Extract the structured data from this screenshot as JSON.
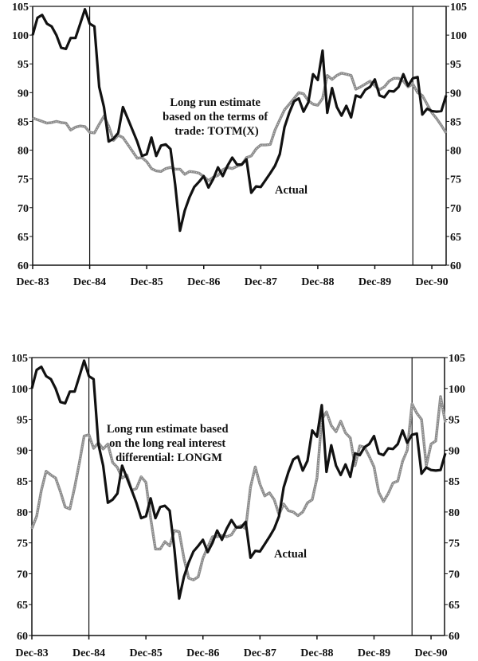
{
  "colors": {
    "actual": "#111111",
    "estimate": "#8c8c8c",
    "axis": "#111111"
  },
  "chart_data": [
    {
      "type": "line",
      "title": "",
      "xlabel": "",
      "ylabel": "",
      "ylim": [
        60,
        105
      ],
      "yticks": [
        "60",
        "65",
        "70",
        "75",
        "80",
        "85",
        "90",
        "95",
        "100",
        "105"
      ],
      "xticks": [
        "Dec-83",
        "Dec-84",
        "Dec-85",
        "Dec-86",
        "Dec-87",
        "Dec-88",
        "Dec-89",
        "Dec-90"
      ],
      "axes": "left and right",
      "grid": false,
      "vertical_lines": [
        "Dec-84",
        "Aug-90"
      ],
      "annotations": {
        "estimate_label": [
          "Long run estimate",
          "based on the terms of",
          "trade: TOTM(X)"
        ],
        "actual_label": "Actual"
      },
      "x": [
        "Dec-83",
        "Jan-84",
        "Feb-84",
        "Mar-84",
        "Apr-84",
        "May-84",
        "Jun-84",
        "Jul-84",
        "Aug-84",
        "Sep-84",
        "Oct-84",
        "Nov-84",
        "Dec-84",
        "Jan-85",
        "Feb-85",
        "Mar-85",
        "Apr-85",
        "May-85",
        "Jun-85",
        "Jul-85",
        "Aug-85",
        "Sep-85",
        "Oct-85",
        "Nov-85",
        "Dec-85",
        "Jan-86",
        "Feb-86",
        "Mar-86",
        "Apr-86",
        "May-86",
        "Jun-86",
        "Jul-86",
        "Aug-86",
        "Sep-86",
        "Oct-86",
        "Nov-86",
        "Dec-86",
        "Jan-87",
        "Feb-87",
        "Mar-87",
        "Apr-87",
        "May-87",
        "Jun-87",
        "Jul-87",
        "Aug-87",
        "Sep-87",
        "Oct-87",
        "Nov-87",
        "Dec-87",
        "Jan-88",
        "Feb-88",
        "Mar-88",
        "Apr-88",
        "May-88",
        "Jun-88",
        "Jul-88",
        "Aug-88",
        "Sep-88",
        "Oct-88",
        "Nov-88",
        "Dec-88",
        "Jan-89",
        "Feb-89",
        "Mar-89",
        "Apr-89",
        "May-89",
        "Jun-89",
        "Jul-89",
        "Aug-89",
        "Sep-89",
        "Oct-89",
        "Nov-89",
        "Dec-89",
        "Jan-90",
        "Feb-90",
        "Mar-90",
        "Apr-90",
        "May-90",
        "Jun-90",
        "Jul-90",
        "Aug-90",
        "Sep-90",
        "Oct-90",
        "Nov-90",
        "Dec-90",
        "Jan-91",
        "Feb-91",
        "Mar-91"
      ],
      "series": [
        {
          "name": "Actual",
          "role": "actual",
          "values": [
            100,
            103,
            103.5,
            102,
            101.5,
            100,
            97.8,
            97.6,
            99.5,
            99.5,
            102,
            104.5,
            102,
            101.5,
            91,
            87.5,
            81.5,
            82,
            83,
            87.5,
            85.5,
            83.5,
            81.5,
            79,
            79.3,
            82.2,
            79,
            80.8,
            81,
            80.2,
            74,
            66,
            69.5,
            71.8,
            73.6,
            74.5,
            75.5,
            73.5,
            75,
            77,
            75.5,
            77.3,
            78.7,
            77.5,
            77.5,
            78.4,
            72.6,
            73.7,
            73.6,
            74.8,
            76,
            77.3,
            79.3,
            84,
            86.5,
            88.5,
            89,
            86.7,
            88.3,
            93.2,
            92.2,
            97.3,
            86.5,
            90.8,
            87.5,
            86,
            87.7,
            85.7,
            89.5,
            89.2,
            90.5,
            91,
            92.3,
            89.5,
            89.2,
            90.3,
            90.2,
            91,
            93.2,
            91.2,
            92.5,
            92.7,
            86.2,
            87.2,
            86.8,
            86.7,
            86.8,
            89.5
          ]
        },
        {
          "name": "Long run estimate based on the terms of trade: TOTM(X)",
          "role": "estimate",
          "values": [
            85.6,
            85.3,
            85,
            84.7,
            84.8,
            85,
            84.8,
            84.7,
            83.5,
            84,
            84.2,
            84.1,
            83.1,
            83,
            84.5,
            85.9,
            84.2,
            81.7,
            82.6,
            82.2,
            81,
            79.8,
            78.6,
            78.7,
            78,
            76.8,
            76.4,
            76.3,
            76.8,
            77,
            76.7,
            76.7,
            75.8,
            76.3,
            76.2,
            76,
            75.4,
            74.7,
            75.3,
            75.6,
            76.6,
            77,
            76.8,
            77.2,
            77.5,
            78.7,
            79,
            80.2,
            80.9,
            80.9,
            81,
            83.5,
            85.3,
            87,
            88,
            89,
            90,
            89.8,
            88.6,
            88,
            87.8,
            89,
            93,
            92.3,
            93,
            93.4,
            93.2,
            93,
            90.6,
            91,
            91.5,
            92,
            91.2,
            90.5,
            91,
            92,
            92.5,
            92.5,
            92,
            91,
            91.5,
            90,
            89.5,
            88,
            86.5,
            85.5,
            84.3,
            83
          ]
        }
      ]
    },
    {
      "type": "line",
      "title": "",
      "xlabel": "",
      "ylabel": "",
      "ylim": [
        60,
        105
      ],
      "yticks": [
        "60",
        "65",
        "70",
        "75",
        "80",
        "85",
        "90",
        "95",
        "100",
        "105"
      ],
      "xticks": [
        "Dec-83",
        "Dec-84",
        "Dec-85",
        "Dec-86",
        "Dec-87",
        "Dec-88",
        "Dec-89",
        "Dec-90"
      ],
      "axes": "left and right",
      "grid": false,
      "vertical_lines": [
        "Dec-84",
        "Aug-90"
      ],
      "annotations": {
        "estimate_label": [
          "Long run estimate based",
          "on the long real interest",
          "differential: LONGM"
        ],
        "actual_label": "Actual"
      },
      "x": [
        "Dec-83",
        "Jan-84",
        "Feb-84",
        "Mar-84",
        "Apr-84",
        "May-84",
        "Jun-84",
        "Jul-84",
        "Aug-84",
        "Sep-84",
        "Oct-84",
        "Nov-84",
        "Dec-84",
        "Jan-85",
        "Feb-85",
        "Mar-85",
        "Apr-85",
        "May-85",
        "Jun-85",
        "Jul-85",
        "Aug-85",
        "Sep-85",
        "Oct-85",
        "Nov-85",
        "Dec-85",
        "Jan-86",
        "Feb-86",
        "Mar-86",
        "Apr-86",
        "May-86",
        "Jun-86",
        "Jul-86",
        "Aug-86",
        "Sep-86",
        "Oct-86",
        "Nov-86",
        "Dec-86",
        "Jan-87",
        "Feb-87",
        "Mar-87",
        "Apr-87",
        "May-87",
        "Jun-87",
        "Jul-87",
        "Aug-87",
        "Sep-87",
        "Oct-87",
        "Nov-87",
        "Dec-87",
        "Jan-88",
        "Feb-88",
        "Mar-88",
        "Apr-88",
        "May-88",
        "Jun-88",
        "Jul-88",
        "Aug-88",
        "Sep-88",
        "Oct-88",
        "Nov-88",
        "Dec-88",
        "Jan-89",
        "Feb-89",
        "Mar-89",
        "Apr-89",
        "May-89",
        "Jun-89",
        "Jul-89",
        "Aug-89",
        "Sep-89",
        "Oct-89",
        "Nov-89",
        "Dec-89",
        "Jan-90",
        "Feb-90",
        "Mar-90",
        "Apr-90",
        "May-90",
        "Jun-90",
        "Jul-90",
        "Aug-90",
        "Sep-90",
        "Oct-90",
        "Nov-90",
        "Dec-90",
        "Jan-91",
        "Feb-91",
        "Mar-91"
      ],
      "series": [
        {
          "name": "Actual",
          "role": "actual",
          "values": [
            100,
            103,
            103.5,
            102,
            101.5,
            100,
            97.8,
            97.6,
            99.5,
            99.5,
            102,
            104.5,
            102,
            101.5,
            91,
            87.5,
            81.5,
            82,
            83,
            87.5,
            85.5,
            83.5,
            81.5,
            79,
            79.3,
            82.2,
            79,
            80.8,
            81,
            80.2,
            74,
            66,
            69.5,
            71.8,
            73.6,
            74.5,
            75.5,
            73.5,
            75,
            77,
            75.5,
            77.3,
            78.7,
            77.5,
            77.5,
            78.4,
            72.6,
            73.7,
            73.6,
            74.8,
            76,
            77.3,
            79.3,
            84,
            86.5,
            88.5,
            89,
            86.7,
            88.3,
            93.2,
            92.2,
            97.3,
            86.5,
            90.8,
            87.5,
            86,
            87.7,
            85.7,
            89.5,
            89.2,
            90.5,
            91,
            92.3,
            89.5,
            89.2,
            90.3,
            90.2,
            91,
            93.2,
            91.2,
            92.5,
            92.7,
            86.2,
            87.2,
            86.8,
            86.7,
            86.8,
            89.5
          ]
        },
        {
          "name": "Long run estimate based on the long real interest differential: LONGM",
          "role": "estimate",
          "values": [
            77.3,
            79.3,
            83.5,
            86.6,
            86,
            85.5,
            83.3,
            80.8,
            80.5,
            84,
            88,
            92.3,
            92.5,
            90.3,
            91.2,
            90.2,
            91,
            88,
            87.2,
            85.5,
            86,
            83.5,
            83.8,
            85.7,
            84.8,
            79,
            74,
            74,
            75.2,
            74.5,
            77,
            76.8,
            72.5,
            69.3,
            69,
            69.5,
            72.5,
            74.3,
            76,
            76,
            76.2,
            76,
            76.3,
            77.5,
            77.8,
            77.3,
            84,
            87.3,
            84.5,
            82.6,
            83.1,
            82,
            79.6,
            81.3,
            80.2,
            80,
            79.4,
            80,
            81.5,
            82,
            85.5,
            95,
            96.2,
            94,
            93,
            94.7,
            92.8,
            92,
            87.5,
            90.7,
            90.5,
            89,
            87.3,
            83.2,
            81.7,
            83,
            84.7,
            85,
            88.2,
            90,
            97.5,
            96,
            95,
            87.5,
            91,
            91.5,
            98.7,
            94.5
          ]
        }
      ]
    }
  ]
}
